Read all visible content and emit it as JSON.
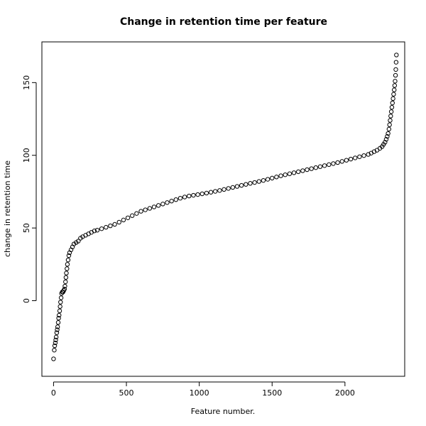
{
  "chart_data": {
    "type": "scatter",
    "title": "Change in retention time per feature",
    "xlabel": "Feature number.",
    "ylabel": "change in retention time",
    "xlim": [
      -80,
      2410
    ],
    "ylim": [
      -52,
      178
    ],
    "x_ticks": [
      0,
      500,
      1000,
      1500,
      2000
    ],
    "y_ticks": [
      0,
      50,
      100,
      150
    ],
    "grid": false,
    "marker": "open-circle",
    "point_color": "#000000",
    "series": [
      {
        "points": [
          [
            0,
            -40
          ],
          [
            5,
            -34
          ],
          [
            8,
            -31
          ],
          [
            12,
            -29
          ],
          [
            15,
            -27
          ],
          [
            18,
            -25
          ],
          [
            22,
            -22
          ],
          [
            25,
            -20
          ],
          [
            28,
            -18
          ],
          [
            32,
            -15
          ],
          [
            35,
            -12
          ],
          [
            38,
            -10
          ],
          [
            42,
            -7
          ],
          [
            45,
            -4
          ],
          [
            48,
            -1
          ],
          [
            52,
            2
          ],
          [
            55,
            5
          ],
          [
            60,
            6
          ],
          [
            65,
            6
          ],
          [
            70,
            7
          ],
          [
            75,
            8
          ],
          [
            78,
            10
          ],
          [
            82,
            13
          ],
          [
            85,
            16
          ],
          [
            88,
            19
          ],
          [
            92,
            22
          ],
          [
            95,
            25
          ],
          [
            100,
            28
          ],
          [
            105,
            31
          ],
          [
            110,
            33
          ],
          [
            120,
            35
          ],
          [
            130,
            37
          ],
          [
            140,
            39
          ],
          [
            155,
            40
          ],
          [
            170,
            41
          ],
          [
            185,
            43
          ],
          [
            200,
            44
          ],
          [
            220,
            45
          ],
          [
            240,
            46
          ],
          [
            260,
            47
          ],
          [
            280,
            48
          ],
          [
            300,
            48.5
          ],
          [
            330,
            49.5
          ],
          [
            360,
            50.5
          ],
          [
            390,
            51.5
          ],
          [
            420,
            52.5
          ],
          [
            450,
            54
          ],
          [
            480,
            55.5
          ],
          [
            510,
            57
          ],
          [
            540,
            58.5
          ],
          [
            570,
            60
          ],
          [
            600,
            61.5
          ],
          [
            630,
            62.5
          ],
          [
            660,
            63.5
          ],
          [
            690,
            64.5
          ],
          [
            720,
            65.5
          ],
          [
            750,
            66.5
          ],
          [
            780,
            67.5
          ],
          [
            810,
            68.5
          ],
          [
            840,
            69.5
          ],
          [
            870,
            70.5
          ],
          [
            900,
            71.3
          ],
          [
            930,
            72
          ],
          [
            960,
            72.5
          ],
          [
            990,
            73
          ],
          [
            1020,
            73.5
          ],
          [
            1050,
            74
          ],
          [
            1080,
            74.6
          ],
          [
            1110,
            75.2
          ],
          [
            1140,
            75.8
          ],
          [
            1170,
            76.5
          ],
          [
            1200,
            77.2
          ],
          [
            1230,
            77.9
          ],
          [
            1260,
            78.6
          ],
          [
            1290,
            79.3
          ],
          [
            1320,
            80
          ],
          [
            1350,
            80.7
          ],
          [
            1380,
            81.3
          ],
          [
            1410,
            82
          ],
          [
            1440,
            82.7
          ],
          [
            1470,
            83.5
          ],
          [
            1500,
            84.3
          ],
          [
            1530,
            85.1
          ],
          [
            1560,
            85.9
          ],
          [
            1590,
            86.6
          ],
          [
            1620,
            87.3
          ],
          [
            1650,
            88
          ],
          [
            1680,
            88.7
          ],
          [
            1710,
            89.4
          ],
          [
            1740,
            90.1
          ],
          [
            1770,
            90.8
          ],
          [
            1800,
            91.5
          ],
          [
            1830,
            92.2
          ],
          [
            1860,
            92.9
          ],
          [
            1890,
            93.6
          ],
          [
            1920,
            94.3
          ],
          [
            1950,
            95
          ],
          [
            1980,
            95.8
          ],
          [
            2010,
            96.6
          ],
          [
            2040,
            97.4
          ],
          [
            2070,
            98.2
          ],
          [
            2100,
            99
          ],
          [
            2130,
            99.8
          ],
          [
            2160,
            100.6
          ],
          [
            2180,
            101.5
          ],
          [
            2200,
            102.5
          ],
          [
            2220,
            103.5
          ],
          [
            2240,
            104.8
          ],
          [
            2255,
            106
          ],
          [
            2265,
            107.5
          ],
          [
            2275,
            109
          ],
          [
            2283,
            111
          ],
          [
            2290,
            113
          ],
          [
            2296,
            115
          ],
          [
            2302,
            118
          ],
          [
            2306,
            121
          ],
          [
            2310,
            124
          ],
          [
            2314,
            127
          ],
          [
            2318,
            130
          ],
          [
            2322,
            133
          ],
          [
            2326,
            136
          ],
          [
            2330,
            139
          ],
          [
            2334,
            142
          ],
          [
            2338,
            145
          ],
          [
            2341,
            148
          ],
          [
            2344,
            151
          ],
          [
            2347,
            155
          ],
          [
            2349,
            159
          ],
          [
            2351,
            164
          ],
          [
            2353,
            169
          ]
        ]
      }
    ]
  }
}
